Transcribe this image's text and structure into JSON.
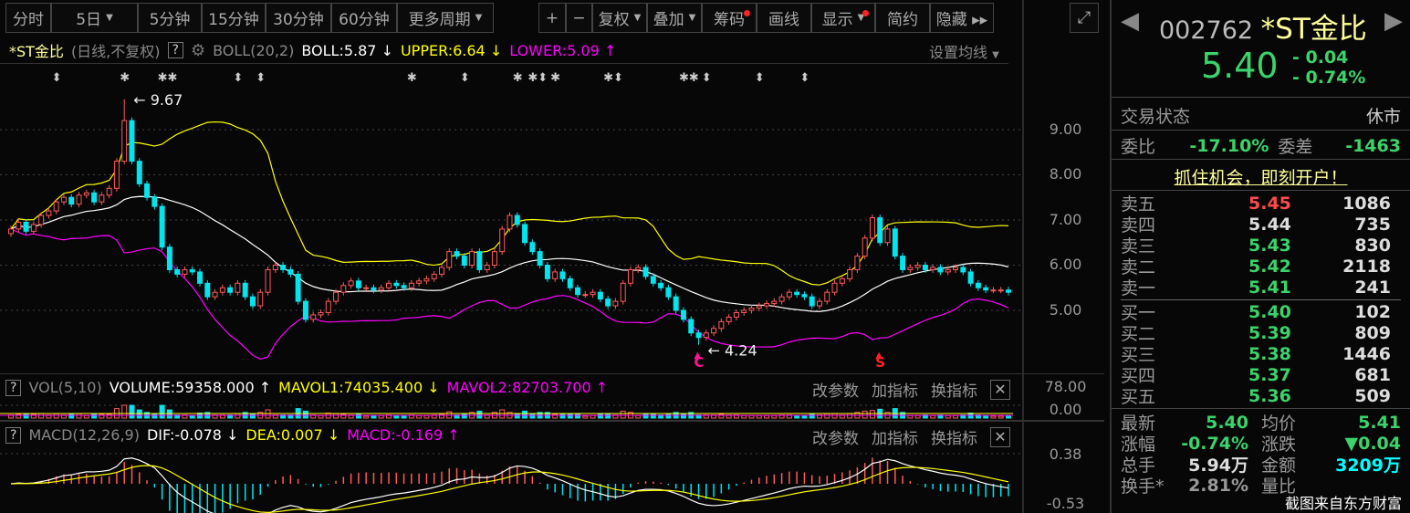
{
  "toolbar": {
    "periods": [
      {
        "label": "分时"
      },
      {
        "label": "5日",
        "caret": true
      },
      {
        "label": "5分钟"
      },
      {
        "label": "15分钟"
      },
      {
        "label": "30分钟"
      },
      {
        "label": "60分钟"
      },
      {
        "label": "更多周期",
        "caret": true
      }
    ],
    "tools": [
      {
        "label": "+"
      },
      {
        "label": "−"
      },
      {
        "label": "复权",
        "caret": true
      },
      {
        "label": "叠加",
        "caret": true
      },
      {
        "label": "筹码",
        "dot": true
      },
      {
        "label": "画线"
      },
      {
        "label": "显示",
        "caret": true,
        "dot": true
      },
      {
        "label": "简约"
      },
      {
        "label": "隐藏 ▸▸"
      }
    ],
    "fullscreen_icon": "expand-icon"
  },
  "main_header": {
    "name": "*ST金比",
    "mode": "(日线,不复权)",
    "help": "?",
    "indicator": "BOLL(20,2)",
    "boll": "BOLL:5.87",
    "upper": "UPPER:6.64",
    "lower": "LOWER:5.09",
    "boll_arrow": "↓",
    "upper_arrow": "↓",
    "lower_arrow": "↑",
    "ma_setting": "设置均线"
  },
  "vol_header": {
    "help": "?",
    "indicator": "VOL(5,10)",
    "volume": "VOLUME:59358.000",
    "mavol1": "MAVOL1:74035.400",
    "mavol2": "MAVOL2:82703.700",
    "volume_arrow": "↑",
    "mavol1_arrow": "↓",
    "mavol2_arrow": "↑"
  },
  "macd_header": {
    "help": "?",
    "indicator": "MACD(12,26,9)",
    "dif": "DIF:-0.078",
    "dea": "DEA:0.007",
    "macd": "MACD:-0.169",
    "dif_arrow": "↓",
    "dea_arrow": "↓",
    "macd_arrow": "↑"
  },
  "panel_actions": {
    "change_params": "改参数",
    "add_indicator": "加指标",
    "switch_indicator": "换指标",
    "close": "✕"
  },
  "colors": {
    "up": "#ff5a5a",
    "down": "#00e5ee",
    "boll": "#ffffff",
    "upper": "#ffff00",
    "lower": "#ff00ff",
    "green": "#3bd36a"
  },
  "chart_data": [
    {
      "type": "candlestick",
      "title": "*ST金比",
      "y_ticks": [
        "9.00",
        "8.00",
        "7.00",
        "6.00",
        "5.00"
      ],
      "ylim": [
        3.9,
        10.0
      ],
      "grid": true,
      "close": [
        6.8,
        6.95,
        6.75,
        6.9,
        7.1,
        7.2,
        7.4,
        7.5,
        7.35,
        7.55,
        7.6,
        7.4,
        7.55,
        7.7,
        8.3,
        9.2,
        8.3,
        7.8,
        7.5,
        7.3,
        6.4,
        5.9,
        5.8,
        5.9,
        5.85,
        5.6,
        5.3,
        5.4,
        5.5,
        5.4,
        5.6,
        5.3,
        5.1,
        5.4,
        5.9,
        6.0,
        5.9,
        5.8,
        5.2,
        4.8,
        4.9,
        4.95,
        5.2,
        5.4,
        5.55,
        5.65,
        5.5,
        5.5,
        5.45,
        5.5,
        5.6,
        5.55,
        5.5,
        5.6,
        5.65,
        5.7,
        5.8,
        5.95,
        6.3,
        6.2,
        6.0,
        6.3,
        5.9,
        6.0,
        6.3,
        6.8,
        7.1,
        6.9,
        6.5,
        6.3,
        6.0,
        5.7,
        5.85,
        5.7,
        5.5,
        5.35,
        5.35,
        5.4,
        5.25,
        5.1,
        5.2,
        5.6,
        5.9,
        5.95,
        5.75,
        5.6,
        5.5,
        5.3,
        5.0,
        4.8,
        4.5,
        4.4,
        4.5,
        4.6,
        4.75,
        4.85,
        4.95,
        5.0,
        5.05,
        5.1,
        5.15,
        5.2,
        5.3,
        5.4,
        5.35,
        5.3,
        5.1,
        5.2,
        5.4,
        5.6,
        5.7,
        5.9,
        6.2,
        6.6,
        7.05,
        6.5,
        6.8,
        6.2,
        5.9,
        5.95,
        6.0,
        5.9,
        5.95,
        5.85,
        5.9,
        5.95,
        5.85,
        5.6,
        5.5,
        5.45,
        5.45,
        5.45,
        5.4
      ],
      "annotations": [
        {
          "label": "9.67",
          "value": 9.67,
          "index": 15
        },
        {
          "label": "4.24",
          "value": 4.24,
          "index": 91
        }
      ],
      "signals": [
        {
          "label": "C",
          "index": 91,
          "color": "#ff1493"
        },
        {
          "label": "S",
          "index": 115,
          "color": "#ff2222"
        }
      ],
      "event_markers": [
        {
          "index": 6,
          "symbol": "⬍"
        },
        {
          "index": 15,
          "symbol": "✱"
        },
        {
          "index": 20,
          "symbol": "✱✱"
        },
        {
          "index": 30,
          "symbol": "⬍"
        },
        {
          "index": 33,
          "symbol": "⬍"
        },
        {
          "index": 53,
          "symbol": "✱"
        },
        {
          "index": 60,
          "symbol": "⬍"
        },
        {
          "index": 67,
          "symbol": "✱"
        },
        {
          "index": 69,
          "symbol": "✱⬍"
        },
        {
          "index": 72,
          "symbol": "✱"
        },
        {
          "index": 79,
          "symbol": "✱⬍"
        },
        {
          "index": 89,
          "symbol": "✱✱"
        },
        {
          "index": 92,
          "symbol": "⬍"
        },
        {
          "index": 99,
          "symbol": "⬍"
        },
        {
          "index": 105,
          "symbol": "⬍"
        }
      ]
    },
    {
      "type": "bar",
      "title": "VOL",
      "y_ticks": [
        "78.00",
        "0.00"
      ]
    },
    {
      "type": "macd",
      "title": "MACD",
      "y_ticks": [
        "0.38",
        "-0.53"
      ]
    }
  ],
  "quote": {
    "code": "002762",
    "name": "*ST金比",
    "price": "5.40",
    "change": "- 0.04",
    "change_pct": "- 0.74%",
    "status_label": "交易状态",
    "status": "休市",
    "wb_label": "委比",
    "wb": "-17.10%",
    "wc_label": "委差",
    "wc": "-1463",
    "ad": "抓住机会，即刻开户！",
    "sells": [
      {
        "label": "卖五",
        "price": "5.45",
        "vol": "1086",
        "color": "r"
      },
      {
        "label": "卖四",
        "price": "5.44",
        "vol": "735",
        "color": "w"
      },
      {
        "label": "卖三",
        "price": "5.43",
        "vol": "830",
        "color": "g"
      },
      {
        "label": "卖二",
        "price": "5.42",
        "vol": "2118",
        "color": "g"
      },
      {
        "label": "卖一",
        "price": "5.41",
        "vol": "241",
        "color": "g"
      }
    ],
    "buys": [
      {
        "label": "买一",
        "price": "5.40",
        "vol": "102",
        "color": "g"
      },
      {
        "label": "买二",
        "price": "5.39",
        "vol": "809",
        "color": "g"
      },
      {
        "label": "买三",
        "price": "5.38",
        "vol": "1446",
        "color": "g"
      },
      {
        "label": "买四",
        "price": "5.37",
        "vol": "681",
        "color": "g"
      },
      {
        "label": "买五",
        "price": "5.36",
        "vol": "509",
        "color": "g"
      }
    ],
    "stats": [
      [
        {
          "label": "最新",
          "value": "5.40",
          "color": "g"
        },
        {
          "label": "均价",
          "value": "5.41",
          "color": "g"
        }
      ],
      [
        {
          "label": "涨幅",
          "value": "-0.74%",
          "color": "g"
        },
        {
          "label": "涨跌",
          "value": "▼0.04",
          "color": "g"
        }
      ],
      [
        {
          "label": "总手",
          "value": "5.94万",
          "color": "w"
        },
        {
          "label": "金额",
          "value": "3209万",
          "color": "c"
        }
      ],
      [
        {
          "label": "换手*",
          "value": "2.81%",
          "color": "grey"
        },
        {
          "label": "量比",
          "value": "",
          "color": "g"
        }
      ]
    ],
    "watermark": "截图来自东方财富"
  }
}
